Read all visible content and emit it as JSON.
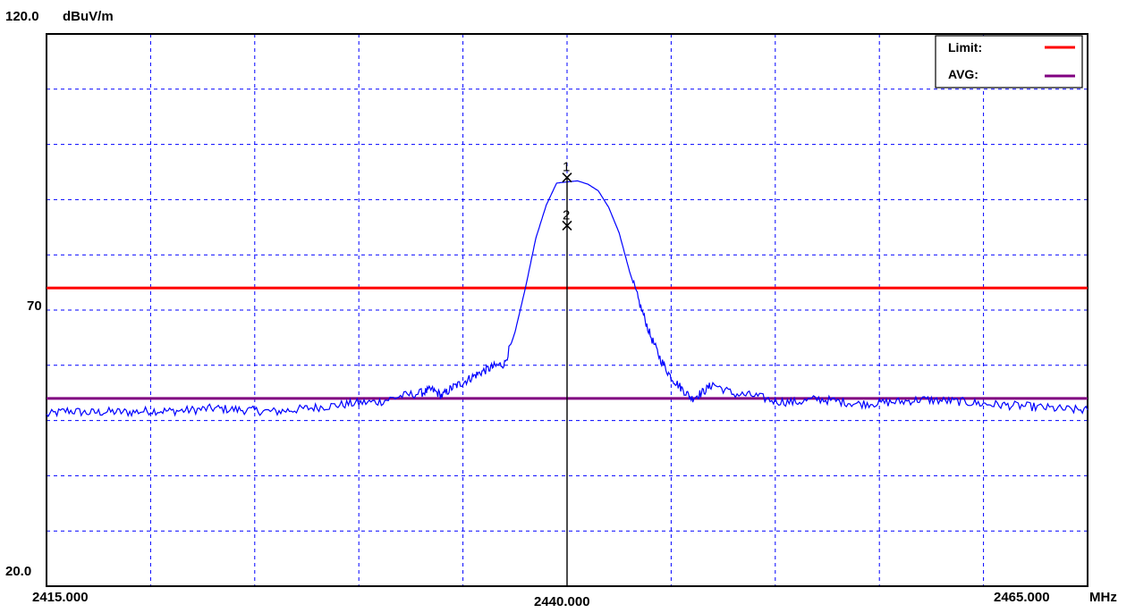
{
  "chart_data": {
    "type": "line",
    "yunit": "dBuV/m",
    "xunit": "MHz",
    "ylim": [
      20.0,
      120.0
    ],
    "xlim": [
      2415.0,
      2465.0
    ],
    "y_tick_labels": {
      "top": "120.0",
      "mid": "70",
      "bottom": "20.0"
    },
    "x_tick_labels": {
      "left": "2415.000",
      "center": "2440.000",
      "right": "2465.000"
    },
    "grid": true,
    "grid_style": "dashed",
    "legend_position": "top-right",
    "legend": [
      {
        "label": "Limit:",
        "color": "#ff0000"
      },
      {
        "label": "AVG:",
        "color": "#800080"
      }
    ],
    "limit_lines": [
      {
        "name": "Limit",
        "y": 74.0,
        "color": "#ff0000"
      },
      {
        "name": "AVG",
        "y": 54.0,
        "color": "#800080"
      }
    ],
    "markers": [
      {
        "label": "1",
        "x": 2440.0,
        "y": 94.0
      },
      {
        "label": "2",
        "x": 2440.0,
        "y": 85.3
      }
    ],
    "series": [
      {
        "color": "#0000ff",
        "x": [
          2415.0,
          2416.0,
          2417.0,
          2418.0,
          2419.0,
          2420.0,
          2421.0,
          2422.0,
          2423.0,
          2424.0,
          2425.0,
          2426.0,
          2427.0,
          2428.0,
          2429.0,
          2430.0,
          2431.0,
          2432.0,
          2433.0,
          2433.5,
          2434.0,
          2434.5,
          2435.0,
          2435.5,
          2436.0,
          2436.5,
          2437.0,
          2437.5,
          2438.0,
          2438.5,
          2439.0,
          2439.5,
          2440.0,
          2440.5,
          2441.0,
          2441.5,
          2442.0,
          2442.5,
          2443.0,
          2443.5,
          2444.0,
          2444.5,
          2445.0,
          2445.5,
          2446.0,
          2446.5,
          2447.0,
          2448.0,
          2449.0,
          2450.0,
          2451.0,
          2452.0,
          2453.0,
          2454.0,
          2455.0,
          2456.0,
          2457.0,
          2458.0,
          2459.0,
          2460.0,
          2461.0,
          2462.0,
          2463.0,
          2464.0,
          2465.0
        ],
        "y": [
          51.0,
          51.8,
          51.4,
          51.6,
          51.5,
          51.8,
          51.7,
          51.9,
          52.2,
          52.0,
          51.8,
          51.6,
          52.0,
          52.4,
          52.8,
          53.2,
          53.4,
          54.4,
          55.0,
          55.6,
          54.5,
          56.0,
          56.9,
          58.0,
          59.0,
          59.8,
          60.3,
          66.0,
          74.0,
          83.0,
          89.0,
          93.0,
          93.2,
          93.4,
          92.8,
          91.6,
          88.6,
          84.0,
          77.0,
          71.0,
          65.4,
          61.0,
          57.8,
          55.8,
          54.0,
          55.1,
          56.6,
          54.8,
          54.5,
          53.5,
          53.3,
          53.9,
          53.5,
          53.0,
          53.2,
          53.4,
          53.8,
          53.6,
          53.4,
          53.0,
          52.8,
          52.6,
          52.3,
          52.0,
          51.9
        ]
      }
    ]
  }
}
